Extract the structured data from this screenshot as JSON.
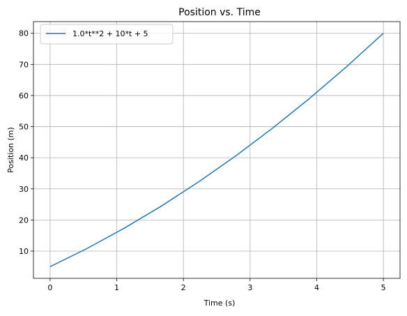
{
  "chart_data": {
    "type": "line",
    "title": "Position vs. Time",
    "xlabel": "Time (s)",
    "ylabel": "Position (m)",
    "xlim": [
      -0.25,
      5.25
    ],
    "ylim": [
      1.25,
      83.75
    ],
    "xticks": [
      0,
      1,
      2,
      3,
      4,
      5
    ],
    "yticks": [
      10,
      20,
      30,
      40,
      50,
      60,
      70,
      80
    ],
    "grid": true,
    "legend_position": "upper-left",
    "series": [
      {
        "name": "1.0*t**2 + 10*t + 5",
        "color": "#1f77b4",
        "x": [
          0,
          0.5556,
          1.1111,
          1.6667,
          2.2222,
          2.7778,
          3.3333,
          3.8889,
          4.4444,
          5.0
        ],
        "y": [
          5.0,
          10.86,
          17.35,
          24.44,
          32.16,
          40.49,
          49.44,
          59.01,
          69.2,
          80.0
        ]
      }
    ]
  }
}
